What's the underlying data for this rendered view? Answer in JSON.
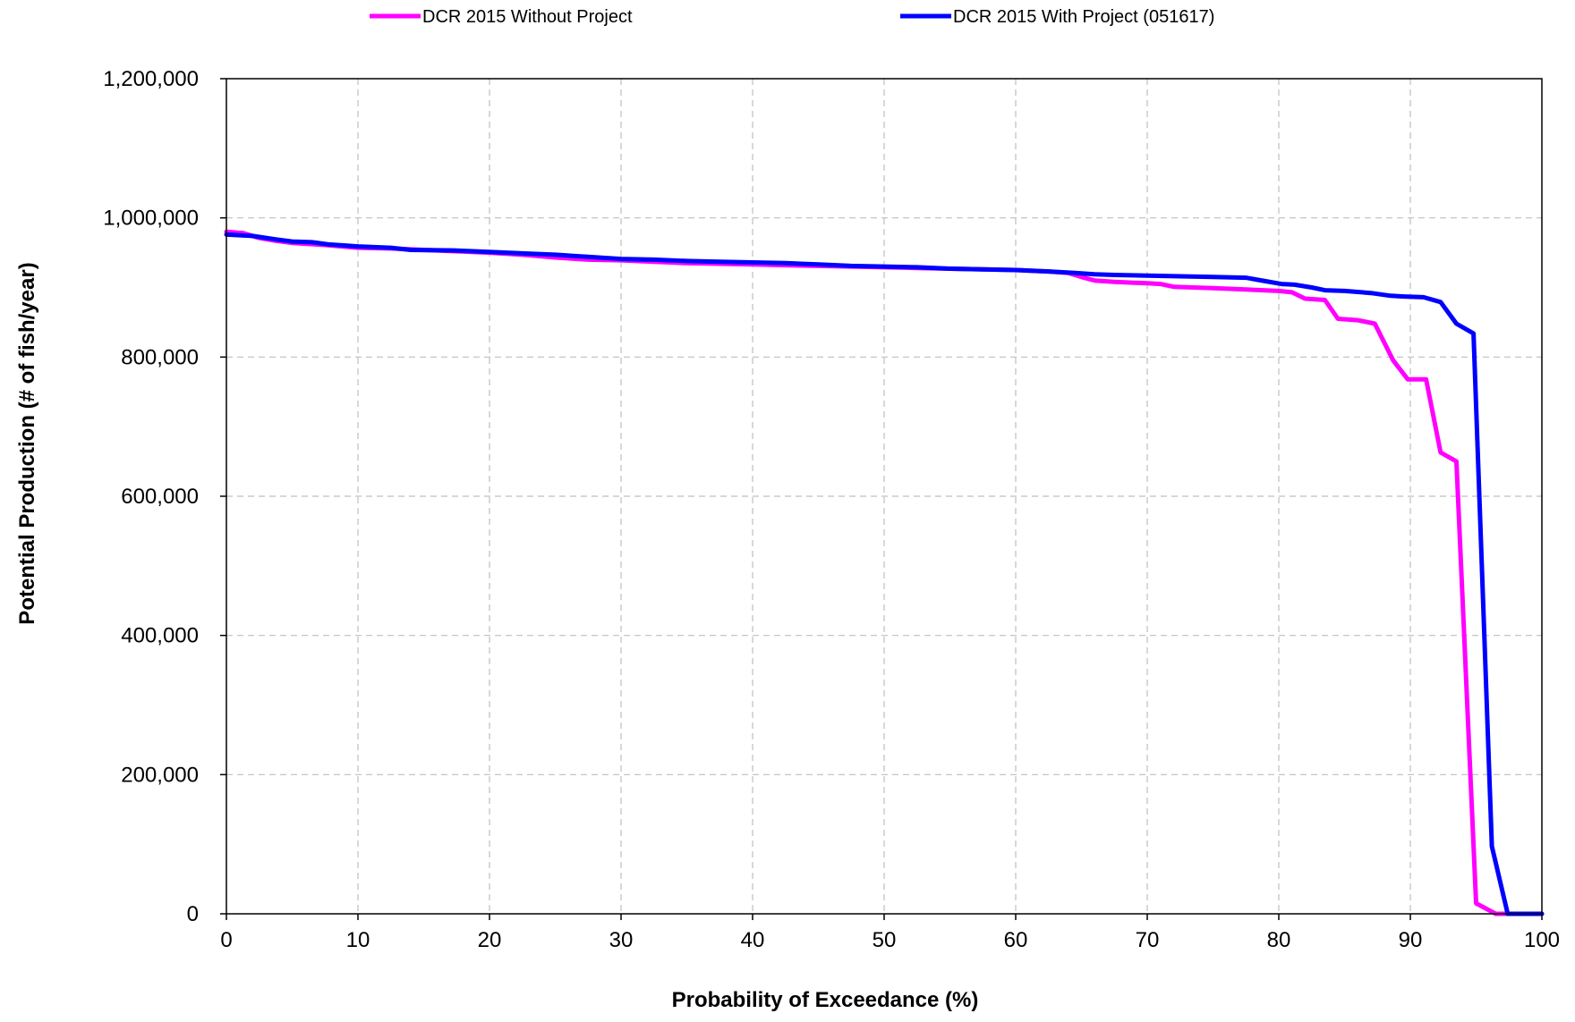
{
  "chart_data": {
    "type": "line",
    "title": "",
    "xlabel": "Probability of Exceedance (%)",
    "ylabel": "Potential Production (# of fish/year)",
    "xlim": [
      0,
      100
    ],
    "ylim": [
      0,
      1200000
    ],
    "xticks": [
      0,
      10,
      20,
      30,
      40,
      50,
      60,
      70,
      80,
      90,
      100
    ],
    "yticks": [
      0,
      200000,
      400000,
      600000,
      800000,
      1000000,
      1200000
    ],
    "xtick_labels": [
      "0",
      "10",
      "20",
      "30",
      "40",
      "50",
      "60",
      "70",
      "80",
      "90",
      "100"
    ],
    "ytick_labels": [
      "0",
      "200,000",
      "400,000",
      "600,000",
      "800,000",
      "1,000,000",
      "1,200,000"
    ],
    "grid": true,
    "legend_position": "top",
    "series": [
      {
        "name": "DCR 2015 Without Project",
        "color": "#ff00ff",
        "points": [
          [
            0,
            980000
          ],
          [
            1.3,
            978000
          ],
          [
            2.5,
            971000
          ],
          [
            3.8,
            967000
          ],
          [
            5,
            964000
          ],
          [
            7.5,
            961000
          ],
          [
            10,
            957000
          ],
          [
            12.5,
            956000
          ],
          [
            15,
            954000
          ],
          [
            17.5,
            952000
          ],
          [
            20,
            950000
          ],
          [
            22.5,
            947000
          ],
          [
            25,
            943000
          ],
          [
            27.5,
            940000
          ],
          [
            30,
            939000
          ],
          [
            32.5,
            937000
          ],
          [
            35,
            935000
          ],
          [
            37.5,
            934000
          ],
          [
            40,
            933000
          ],
          [
            42.5,
            932000
          ],
          [
            45,
            931000
          ],
          [
            47.5,
            930000
          ],
          [
            50,
            929000
          ],
          [
            52.5,
            928000
          ],
          [
            55,
            927000
          ],
          [
            57.5,
            926000
          ],
          [
            60,
            925000
          ],
          [
            62.5,
            923000
          ],
          [
            64,
            921000
          ],
          [
            65,
            915000
          ],
          [
            66,
            910000
          ],
          [
            67.5,
            908000
          ],
          [
            70,
            906000
          ],
          [
            71,
            905000
          ],
          [
            72,
            901000
          ],
          [
            75,
            899000
          ],
          [
            77.5,
            897000
          ],
          [
            80,
            895000
          ],
          [
            81,
            893000
          ],
          [
            82,
            884000
          ],
          [
            83.5,
            882000
          ],
          [
            84.5,
            855000
          ],
          [
            86,
            853000
          ],
          [
            87.3,
            848000
          ],
          [
            88.7,
            795000
          ],
          [
            89.8,
            768000
          ],
          [
            91.2,
            768000
          ],
          [
            92.3,
            663000
          ],
          [
            93.5,
            650000
          ],
          [
            95,
            15000
          ],
          [
            96.5,
            0
          ],
          [
            100,
            0
          ]
        ]
      },
      {
        "name": "DCR 2015 With Project (051617)",
        "color": "#0000ff",
        "points": [
          [
            0,
            976000
          ],
          [
            2,
            974000
          ],
          [
            3.8,
            969000
          ],
          [
            5,
            966000
          ],
          [
            6.5,
            965000
          ],
          [
            7.7,
            962000
          ],
          [
            10,
            959000
          ],
          [
            12.5,
            957000
          ],
          [
            14,
            954000
          ],
          [
            17.5,
            953000
          ],
          [
            20,
            951000
          ],
          [
            22.5,
            949000
          ],
          [
            25,
            947000
          ],
          [
            27.5,
            944000
          ],
          [
            30,
            941000
          ],
          [
            32.5,
            940000
          ],
          [
            35,
            938000
          ],
          [
            37.5,
            937000
          ],
          [
            40,
            936000
          ],
          [
            42.5,
            935000
          ],
          [
            45,
            933000
          ],
          [
            47.5,
            931000
          ],
          [
            50,
            930000
          ],
          [
            52.5,
            929000
          ],
          [
            55,
            927000
          ],
          [
            57.5,
            926000
          ],
          [
            60,
            925000
          ],
          [
            62.5,
            923000
          ],
          [
            64.5,
            921000
          ],
          [
            66,
            919000
          ],
          [
            67.5,
            918000
          ],
          [
            70,
            917000
          ],
          [
            72.5,
            916000
          ],
          [
            75,
            915000
          ],
          [
            77.5,
            914000
          ],
          [
            79,
            909000
          ],
          [
            80.2,
            905000
          ],
          [
            81.2,
            904000
          ],
          [
            82.5,
            900000
          ],
          [
            83.5,
            896000
          ],
          [
            85,
            895000
          ],
          [
            87,
            892000
          ],
          [
            88.5,
            888000
          ],
          [
            89.5,
            887000
          ],
          [
            91,
            886000
          ],
          [
            92.3,
            879000
          ],
          [
            93.5,
            848000
          ],
          [
            94.8,
            834000
          ],
          [
            96.2,
            97000
          ],
          [
            97.4,
            0
          ],
          [
            100,
            0
          ]
        ]
      }
    ]
  }
}
